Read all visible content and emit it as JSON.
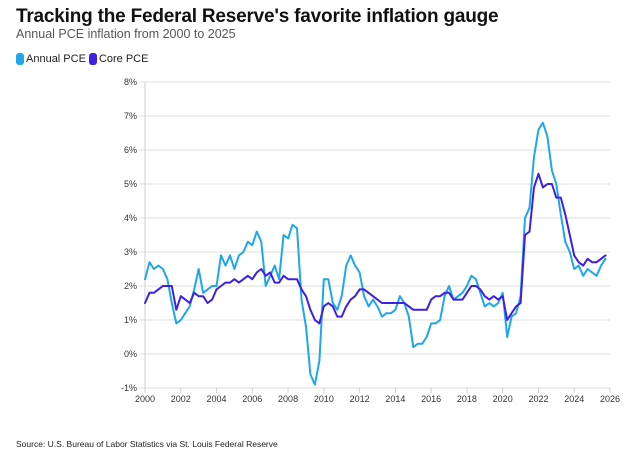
{
  "header": {
    "title": "Tracking the Federal Reserve's favorite inflation gauge",
    "subtitle": "Annual PCE inflation from 2000 to 2025"
  },
  "legend": [
    {
      "label": "Annual PCE",
      "color": "#1ea7ea"
    },
    {
      "label": "Core PCE",
      "color": "#3f1fe0"
    }
  ],
  "source": "Source: U.S. Bureau of Labor Statistics via St. Louis Federal Reserve",
  "chart_data": {
    "type": "line",
    "title": "Tracking the Federal Reserve's favorite inflation gauge",
    "subtitle": "Annual PCE inflation from 2000 to 2025",
    "xlabel": "",
    "ylabel": "",
    "xlim": [
      2000,
      2026
    ],
    "ylim": [
      -1,
      8
    ],
    "grid": true,
    "legend_position": "top-left",
    "x_ticks": [
      "2000",
      "2002",
      "2004",
      "2006",
      "2008",
      "2010",
      "2012",
      "2014",
      "2016",
      "2018",
      "2020",
      "2022",
      "2024",
      "2026"
    ],
    "y_ticks": [
      "-1%",
      "0%",
      "1%",
      "2%",
      "3%",
      "4%",
      "5%",
      "6%",
      "7%",
      "8%"
    ],
    "x": [
      2000.0,
      2000.25,
      2000.5,
      2000.75,
      2001.0,
      2001.25,
      2001.5,
      2001.75,
      2002.0,
      2002.25,
      2002.5,
      2002.75,
      2003.0,
      2003.25,
      2003.5,
      2003.75,
      2004.0,
      2004.25,
      2004.5,
      2004.75,
      2005.0,
      2005.25,
      2005.5,
      2005.75,
      2006.0,
      2006.25,
      2006.5,
      2006.75,
      2007.0,
      2007.25,
      2007.5,
      2007.75,
      2008.0,
      2008.25,
      2008.5,
      2008.75,
      2009.0,
      2009.25,
      2009.5,
      2009.75,
      2010.0,
      2010.25,
      2010.5,
      2010.75,
      2011.0,
      2011.25,
      2011.5,
      2011.75,
      2012.0,
      2012.25,
      2012.5,
      2012.75,
      2013.0,
      2013.25,
      2013.5,
      2013.75,
      2014.0,
      2014.25,
      2014.5,
      2014.75,
      2015.0,
      2015.25,
      2015.5,
      2015.75,
      2016.0,
      2016.25,
      2016.5,
      2016.75,
      2017.0,
      2017.25,
      2017.5,
      2017.75,
      2018.0,
      2018.25,
      2018.5,
      2018.75,
      2019.0,
      2019.25,
      2019.5,
      2019.75,
      2020.0,
      2020.25,
      2020.5,
      2020.75,
      2021.0,
      2021.25,
      2021.5,
      2021.75,
      2022.0,
      2022.25,
      2022.5,
      2022.75,
      2023.0,
      2023.25,
      2023.5,
      2023.75,
      2024.0,
      2024.25,
      2024.5,
      2024.75,
      2025.0,
      2025.25,
      2025.5,
      2025.75
    ],
    "series": [
      {
        "name": "Annual PCE",
        "color": "#1ea7ea",
        "values": [
          2.2,
          2.7,
          2.5,
          2.6,
          2.5,
          2.2,
          1.5,
          0.9,
          1.0,
          1.2,
          1.4,
          1.9,
          2.5,
          1.8,
          1.9,
          2.0,
          2.0,
          2.9,
          2.6,
          2.9,
          2.5,
          2.9,
          3.0,
          3.3,
          3.2,
          3.6,
          3.3,
          2.0,
          2.3,
          2.6,
          2.2,
          3.5,
          3.4,
          3.8,
          3.7,
          1.6,
          0.8,
          -0.6,
          -0.9,
          -0.2,
          2.2,
          2.2,
          1.5,
          1.3,
          1.7,
          2.6,
          2.9,
          2.6,
          2.4,
          1.7,
          1.4,
          1.6,
          1.4,
          1.1,
          1.2,
          1.2,
          1.3,
          1.7,
          1.5,
          1.1,
          0.2,
          0.3,
          0.3,
          0.5,
          0.9,
          0.9,
          1.0,
          1.7,
          2.0,
          1.6,
          1.7,
          1.8,
          2.0,
          2.3,
          2.2,
          1.8,
          1.4,
          1.5,
          1.4,
          1.5,
          1.8,
          0.5,
          1.1,
          1.2,
          1.7,
          4.0,
          4.3,
          5.8,
          6.6,
          6.8,
          6.4,
          5.4,
          5.0,
          4.1,
          3.3,
          3.0,
          2.5,
          2.6,
          2.3,
          2.5,
          2.4,
          2.3,
          2.6,
          2.8
        ]
      },
      {
        "name": "Core PCE",
        "color": "#3f1fe0",
        "values": [
          1.5,
          1.8,
          1.8,
          1.9,
          2.0,
          2.0,
          2.0,
          1.3,
          1.7,
          1.6,
          1.5,
          1.8,
          1.7,
          1.7,
          1.5,
          1.6,
          1.9,
          2.0,
          2.1,
          2.1,
          2.2,
          2.1,
          2.2,
          2.3,
          2.2,
          2.4,
          2.5,
          2.3,
          2.4,
          2.1,
          2.1,
          2.3,
          2.2,
          2.2,
          2.2,
          1.9,
          1.7,
          1.3,
          1.0,
          0.9,
          1.4,
          1.5,
          1.4,
          1.1,
          1.1,
          1.4,
          1.6,
          1.7,
          1.9,
          1.9,
          1.8,
          1.7,
          1.6,
          1.5,
          1.5,
          1.5,
          1.5,
          1.5,
          1.5,
          1.4,
          1.3,
          1.3,
          1.3,
          1.3,
          1.6,
          1.7,
          1.7,
          1.8,
          1.8,
          1.6,
          1.6,
          1.6,
          1.8,
          2.0,
          2.0,
          1.9,
          1.7,
          1.6,
          1.7,
          1.6,
          1.7,
          1.0,
          1.2,
          1.4,
          1.5,
          3.5,
          3.6,
          4.9,
          5.3,
          4.9,
          5.0,
          5.0,
          4.6,
          4.6,
          4.1,
          3.5,
          2.9,
          2.7,
          2.6,
          2.8,
          2.7,
          2.7,
          2.8,
          2.9
        ]
      }
    ]
  }
}
